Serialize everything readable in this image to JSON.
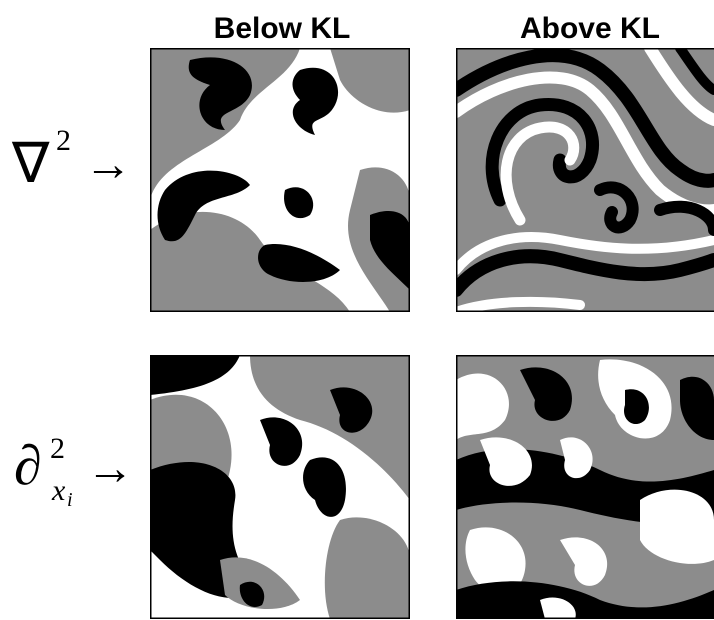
{
  "columns": [
    "Below KL",
    "Above KL"
  ],
  "rows": [
    {
      "symbol": "∇",
      "superscript": "2",
      "arrow": "→"
    },
    {
      "symbol": "∂",
      "superscript": "2",
      "subscript": "x",
      "subsubscript": "i",
      "arrow": "→"
    }
  ]
}
